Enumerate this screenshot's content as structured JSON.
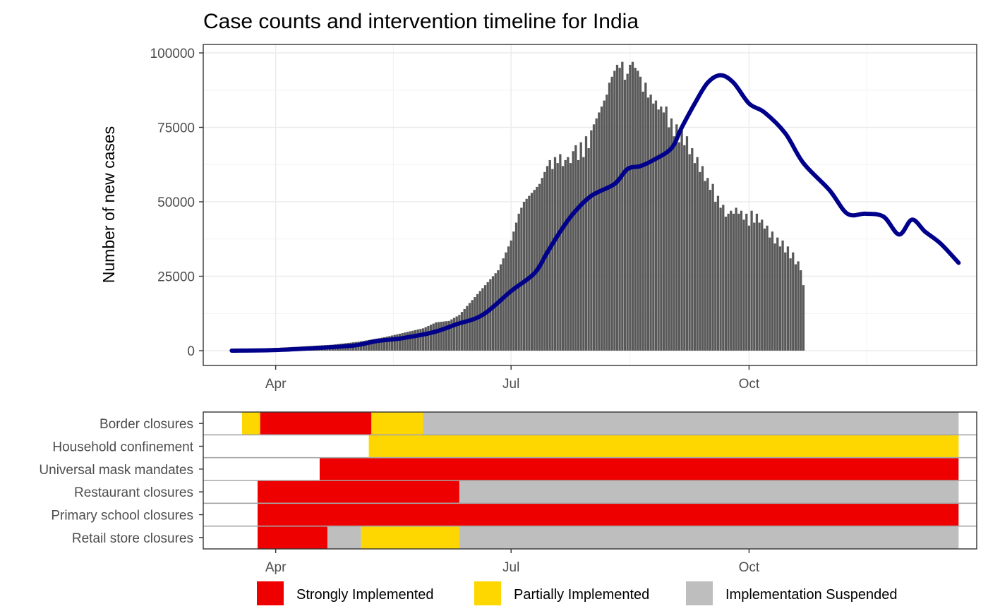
{
  "chart_data": [
    {
      "type": "bar",
      "title": "Case counts and intervention timeline for India",
      "xlabel": "",
      "ylabel": "Number of new cases",
      "ylim": [
        0,
        100000
      ],
      "y_ticks": [
        0,
        25000,
        50000,
        75000,
        100000
      ],
      "y_tick_labels": [
        "0",
        "25000",
        "50000",
        "75000",
        "100000"
      ],
      "x_tick_labels": [
        {
          "date": "2020-04-01",
          "label": "Apr"
        },
        {
          "date": "2020-07-01",
          "label": "Jul"
        },
        {
          "date": "2020-10-01",
          "label": "Oct"
        }
      ],
      "x_range": [
        "2020-03-04",
        "2020-12-28"
      ],
      "grid": true,
      "bar_color": "#595959",
      "smooth_color": "#00008B",
      "bar_start_date": "2020-03-24",
      "bar_values": [
        500,
        550,
        600,
        650,
        700,
        750,
        800,
        850,
        900,
        950,
        1000,
        1050,
        1100,
        1150,
        1200,
        1250,
        1300,
        1350,
        1400,
        1450,
        1500,
        1550,
        1600,
        1650,
        1700,
        1750,
        1800,
        1850,
        1900,
        1950,
        2000,
        2100,
        2200,
        2300,
        2400,
        2500,
        2600,
        2700,
        2800,
        2900,
        3000,
        3150,
        3300,
        3450,
        3600,
        3750,
        3900,
        4050,
        4200,
        4350,
        4500,
        4700,
        4900,
        5100,
        5300,
        5500,
        5700,
        5900,
        6100,
        6300,
        6500,
        6700,
        6900,
        7100,
        7300,
        7500,
        7900,
        8300,
        8700,
        9100,
        9500,
        9600,
        9700,
        9800,
        9900,
        10000,
        10500,
        11000,
        11500,
        12000,
        13000,
        14000,
        15000,
        16000,
        17000,
        18000,
        19000,
        20000,
        21000,
        22000,
        23000,
        24000,
        25000,
        26000,
        27000,
        29000,
        31000,
        33000,
        35000,
        37000,
        40000,
        43000,
        46000,
        48000,
        50000,
        51000,
        52000,
        53000,
        54000,
        55000,
        56000,
        58000,
        60000,
        62000,
        64000,
        61000,
        65000,
        63000,
        66000,
        62000,
        64000,
        65000,
        63000,
        67000,
        69000,
        64000,
        70000,
        65000,
        72000,
        68000,
        74000,
        76000,
        78000,
        80000,
        82000,
        84000,
        86000,
        90000,
        92000,
        94000,
        96000,
        95000,
        97000,
        91000,
        93000,
        96000,
        97000,
        95000,
        94000,
        92000,
        87000,
        90000,
        85000,
        86000,
        83000,
        84000,
        81000,
        82000,
        80000,
        82000,
        75000,
        78000,
        72000,
        76000,
        70000,
        74000,
        69000,
        72000,
        66000,
        68000,
        63000,
        65000,
        60000,
        62000,
        57000,
        58000,
        54000,
        56000,
        50000,
        52000,
        48000,
        49000,
        45000,
        46000,
        47000,
        46000,
        48000,
        46000,
        47000,
        44000,
        46000,
        42000,
        47000,
        43000,
        46000,
        43000,
        44000,
        41000,
        42000,
        38000,
        40000,
        36000,
        38000,
        35000,
        37000,
        33000,
        35000,
        31000,
        33000,
        29000,
        30000,
        27000,
        22000
      ],
      "smooth": [
        {
          "date": "2020-03-15",
          "value": 0
        },
        {
          "date": "2020-04-01",
          "value": 200
        },
        {
          "date": "2020-04-15",
          "value": 800
        },
        {
          "date": "2020-05-01",
          "value": 1700
        },
        {
          "date": "2020-05-10",
          "value": 3200
        },
        {
          "date": "2020-05-20",
          "value": 4200
        },
        {
          "date": "2020-06-01",
          "value": 6200
        },
        {
          "date": "2020-06-10",
          "value": 8900
        },
        {
          "date": "2020-06-20",
          "value": 12000
        },
        {
          "date": "2020-07-01",
          "value": 20000
        },
        {
          "date": "2020-07-10",
          "value": 26000
        },
        {
          "date": "2020-07-15",
          "value": 33000
        },
        {
          "date": "2020-07-20",
          "value": 40000
        },
        {
          "date": "2020-07-25",
          "value": 46000
        },
        {
          "date": "2020-08-01",
          "value": 52000
        },
        {
          "date": "2020-08-10",
          "value": 56000
        },
        {
          "date": "2020-08-15",
          "value": 61000
        },
        {
          "date": "2020-08-20",
          "value": 62000
        },
        {
          "date": "2020-08-25",
          "value": 64000
        },
        {
          "date": "2020-09-01",
          "value": 68000
        },
        {
          "date": "2020-09-05",
          "value": 75000
        },
        {
          "date": "2020-09-10",
          "value": 83000
        },
        {
          "date": "2020-09-15",
          "value": 90000
        },
        {
          "date": "2020-09-20",
          "value": 92500
        },
        {
          "date": "2020-09-25",
          "value": 90000
        },
        {
          "date": "2020-10-01",
          "value": 83000
        },
        {
          "date": "2020-10-07",
          "value": 80000
        },
        {
          "date": "2020-10-15",
          "value": 73000
        },
        {
          "date": "2020-10-22",
          "value": 63000
        },
        {
          "date": "2020-11-01",
          "value": 54000
        },
        {
          "date": "2020-11-08",
          "value": 46000
        },
        {
          "date": "2020-11-15",
          "value": 46000
        },
        {
          "date": "2020-11-22",
          "value": 45000
        },
        {
          "date": "2020-11-28",
          "value": 39000
        },
        {
          "date": "2020-12-03",
          "value": 44000
        },
        {
          "date": "2020-12-08",
          "value": 40000
        },
        {
          "date": "2020-12-14",
          "value": 36000
        },
        {
          "date": "2020-12-21",
          "value": 29500
        }
      ]
    },
    {
      "type": "timeline",
      "x_tick_labels": [
        {
          "date": "2020-04-01",
          "label": "Apr"
        },
        {
          "date": "2020-07-01",
          "label": "Jul"
        },
        {
          "date": "2020-10-01",
          "label": "Oct"
        }
      ],
      "categories": [
        "Border closures",
        "Household confinement",
        "Universal mask mandates",
        "Restaurant closures",
        "Primary school closures",
        "Retail store closures"
      ],
      "rows": [
        {
          "label": "Border closures",
          "segments": [
            {
              "start": "2020-03-19",
              "end": "2020-03-26",
              "status": "Partially Implemented"
            },
            {
              "start": "2020-03-26",
              "end": "2020-05-08",
              "status": "Strongly Implemented"
            },
            {
              "start": "2020-05-08",
              "end": "2020-05-28",
              "status": "Partially Implemented"
            },
            {
              "start": "2020-05-28",
              "end": "2020-12-21",
              "status": "Implementation Suspended"
            }
          ]
        },
        {
          "label": "Household confinement",
          "segments": [
            {
              "start": "2020-05-07",
              "end": "2020-12-21",
              "status": "Partially Implemented"
            }
          ]
        },
        {
          "label": "Universal mask mandates",
          "segments": [
            {
              "start": "2020-04-18",
              "end": "2020-12-21",
              "status": "Strongly Implemented"
            }
          ]
        },
        {
          "label": "Restaurant closures",
          "segments": [
            {
              "start": "2020-03-25",
              "end": "2020-06-11",
              "status": "Strongly Implemented"
            },
            {
              "start": "2020-06-11",
              "end": "2020-12-21",
              "status": "Implementation Suspended"
            }
          ]
        },
        {
          "label": "Primary school closures",
          "segments": [
            {
              "start": "2020-03-25",
              "end": "2020-12-21",
              "status": "Strongly Implemented"
            }
          ]
        },
        {
          "label": "Retail store closures",
          "segments": [
            {
              "start": "2020-03-25",
              "end": "2020-04-21",
              "status": "Strongly Implemented"
            },
            {
              "start": "2020-04-21",
              "end": "2020-05-04",
              "status": "Implementation Suspended"
            },
            {
              "start": "2020-05-04",
              "end": "2020-06-11",
              "status": "Partially Implemented"
            },
            {
              "start": "2020-06-11",
              "end": "2020-12-21",
              "status": "Implementation Suspended"
            }
          ]
        }
      ],
      "legend": [
        {
          "label": "Strongly Implemented",
          "color": "#EE0000"
        },
        {
          "label": "Partially Implemented",
          "color": "#FFD700"
        },
        {
          "label": "Implementation Suspended",
          "color": "#BEBEBE"
        }
      ],
      "legend_position": "bottom"
    }
  ]
}
